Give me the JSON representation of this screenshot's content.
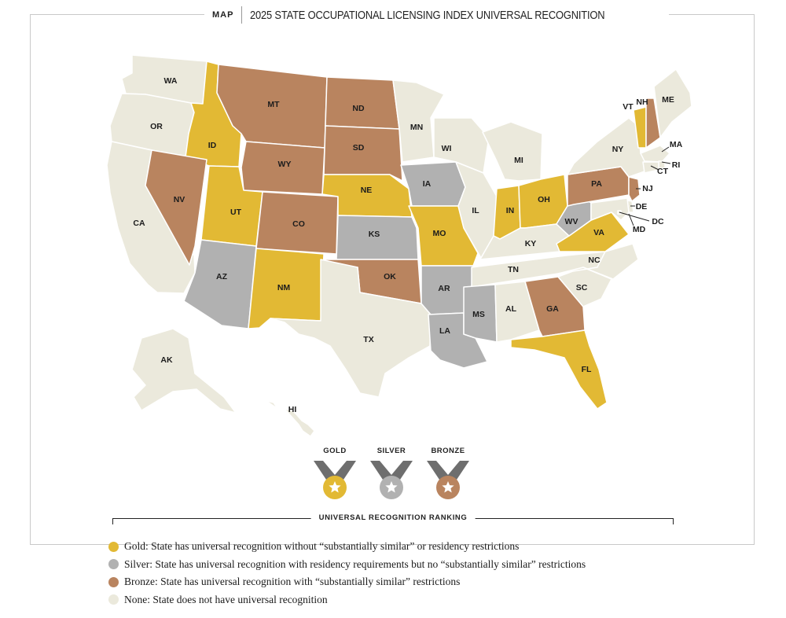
{
  "header": {
    "tag": "MAP",
    "title": "2025 STATE OCCUPATIONAL LICENSING INDEX UNIVERSAL RECOGNITION"
  },
  "colors": {
    "gold": "#e2b934",
    "silver": "#b1b1b1",
    "bronze": "#b9845f",
    "none": "#ebe9dc"
  },
  "states": [
    {
      "code": "WA",
      "status": "none"
    },
    {
      "code": "OR",
      "status": "none"
    },
    {
      "code": "CA",
      "status": "none"
    },
    {
      "code": "ID",
      "status": "gold"
    },
    {
      "code": "NV",
      "status": "bronze"
    },
    {
      "code": "MT",
      "status": "bronze"
    },
    {
      "code": "WY",
      "status": "bronze"
    },
    {
      "code": "UT",
      "status": "gold"
    },
    {
      "code": "AZ",
      "status": "silver"
    },
    {
      "code": "CO",
      "status": "bronze"
    },
    {
      "code": "NM",
      "status": "gold"
    },
    {
      "code": "ND",
      "status": "bronze"
    },
    {
      "code": "SD",
      "status": "bronze"
    },
    {
      "code": "NE",
      "status": "gold"
    },
    {
      "code": "KS",
      "status": "silver"
    },
    {
      "code": "OK",
      "status": "bronze"
    },
    {
      "code": "TX",
      "status": "none"
    },
    {
      "code": "MN",
      "status": "none"
    },
    {
      "code": "IA",
      "status": "silver"
    },
    {
      "code": "MO",
      "status": "gold"
    },
    {
      "code": "AR",
      "status": "silver"
    },
    {
      "code": "LA",
      "status": "silver"
    },
    {
      "code": "WI",
      "status": "none"
    },
    {
      "code": "IL",
      "status": "none"
    },
    {
      "code": "MI",
      "status": "none"
    },
    {
      "code": "IN",
      "status": "gold"
    },
    {
      "code": "OH",
      "status": "gold"
    },
    {
      "code": "KY",
      "status": "none"
    },
    {
      "code": "TN",
      "status": "none"
    },
    {
      "code": "MS",
      "status": "silver"
    },
    {
      "code": "AL",
      "status": "none"
    },
    {
      "code": "GA",
      "status": "bronze"
    },
    {
      "code": "FL",
      "status": "gold"
    },
    {
      "code": "SC",
      "status": "none"
    },
    {
      "code": "NC",
      "status": "none"
    },
    {
      "code": "VA",
      "status": "gold"
    },
    {
      "code": "WV",
      "status": "silver"
    },
    {
      "code": "PA",
      "status": "bronze"
    },
    {
      "code": "NY",
      "status": "none"
    },
    {
      "code": "VT",
      "status": "gold"
    },
    {
      "code": "NH",
      "status": "bronze"
    },
    {
      "code": "ME",
      "status": "none"
    },
    {
      "code": "MA",
      "status": "none"
    },
    {
      "code": "RI",
      "status": "none"
    },
    {
      "code": "CT",
      "status": "none"
    },
    {
      "code": "NJ",
      "status": "bronze"
    },
    {
      "code": "DE",
      "status": "none"
    },
    {
      "code": "MD",
      "status": "none"
    },
    {
      "code": "DC",
      "status": "none"
    },
    {
      "code": "AK",
      "status": "none"
    },
    {
      "code": "HI",
      "status": "none"
    }
  ],
  "medals": [
    {
      "label": "GOLD",
      "color": "#e2b934"
    },
    {
      "label": "SILVER",
      "color": "#b1b1b1"
    },
    {
      "label": "BRONZE",
      "color": "#b9845f"
    }
  ],
  "ranking_title": "UNIVERSAL RECOGNITION RANKING",
  "legend": [
    {
      "color": "#e2b934",
      "text": "Gold: State has universal recognition without “substantially similar” or residency restrictions"
    },
    {
      "color": "#b1b1b1",
      "text": "Silver: State has universal recognition with residency requirements but no “substantially similar” restrictions"
    },
    {
      "color": "#b9845f",
      "text": "Bronze: State has universal recognition with “substantially similar” restrictions"
    },
    {
      "color": "#ebe9dc",
      "text": "None: State does not have universal recognition"
    }
  ]
}
